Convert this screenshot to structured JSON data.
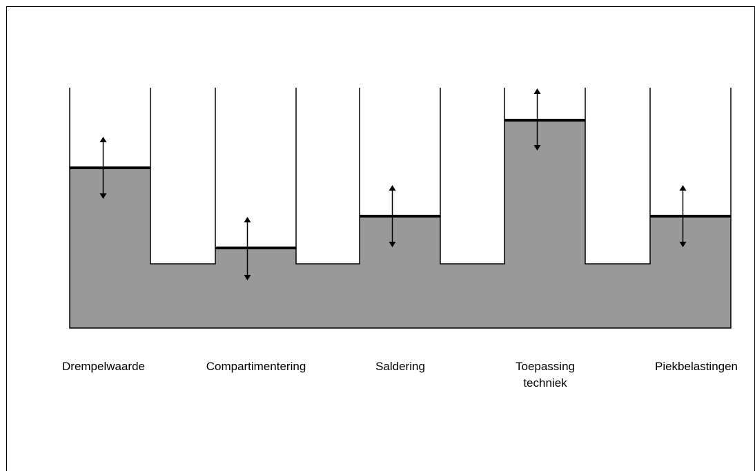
{
  "colors": {
    "fill": "#999999",
    "stroke": "#000000",
    "background": "#ffffff"
  },
  "columns": [
    {
      "label_lines": [
        "Drempelwaarde"
      ],
      "arrow": "up-down"
    },
    {
      "label_lines": [
        "Compartimentering"
      ],
      "arrow": "up-down"
    },
    {
      "label_lines": [
        "Saldering"
      ],
      "arrow": "up-down"
    },
    {
      "label_lines": [
        "Toepassing",
        "techniek"
      ],
      "arrow": "up-down"
    },
    {
      "label_lines": [
        "Piekbelastingen"
      ],
      "arrow": "up-down"
    }
  ]
}
